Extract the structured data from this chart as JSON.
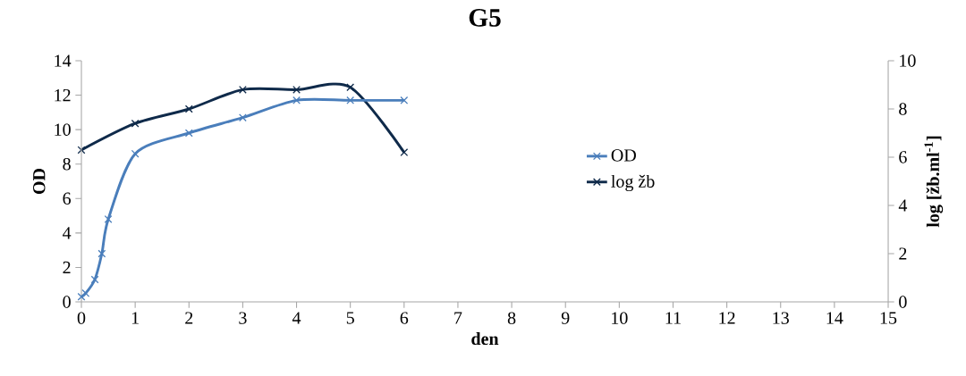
{
  "chart_data": {
    "type": "line",
    "title": "G5",
    "xlabel": "den",
    "ylabel": "OD",
    "y2label": "log [žb.ml$^{-1}$]",
    "xlim": [
      0,
      15
    ],
    "xticks": [
      0,
      1,
      2,
      3,
      4,
      5,
      6,
      7,
      8,
      9,
      10,
      11,
      12,
      13,
      14,
      15
    ],
    "ylim": [
      0,
      14
    ],
    "yticks": [
      0,
      2,
      4,
      6,
      8,
      10,
      12,
      14
    ],
    "y2lim": [
      0,
      10
    ],
    "y2ticks": [
      0,
      2,
      4,
      6,
      8,
      10
    ],
    "series": [
      {
        "name": "OD",
        "color": "#4a7ebb",
        "x": [
          0,
          0.08,
          0.25,
          0.38,
          0.5,
          1,
          2,
          3,
          4,
          5,
          6
        ],
        "values": [
          0.3,
          0.5,
          1.3,
          2.8,
          4.8,
          8.6,
          9.8,
          10.7,
          11.7,
          11.7,
          11.7
        ]
      },
      {
        "name": "log žb",
        "color": "#0f2a4a",
        "axis": "y2",
        "x": [
          0,
          1,
          2,
          3,
          4,
          5,
          6
        ],
        "values": [
          6.3,
          7.4,
          8.0,
          8.8,
          8.8,
          8.9,
          6.2
        ]
      }
    ],
    "marker": "cross",
    "line_style": "solid",
    "grid": false,
    "legend": "right"
  }
}
